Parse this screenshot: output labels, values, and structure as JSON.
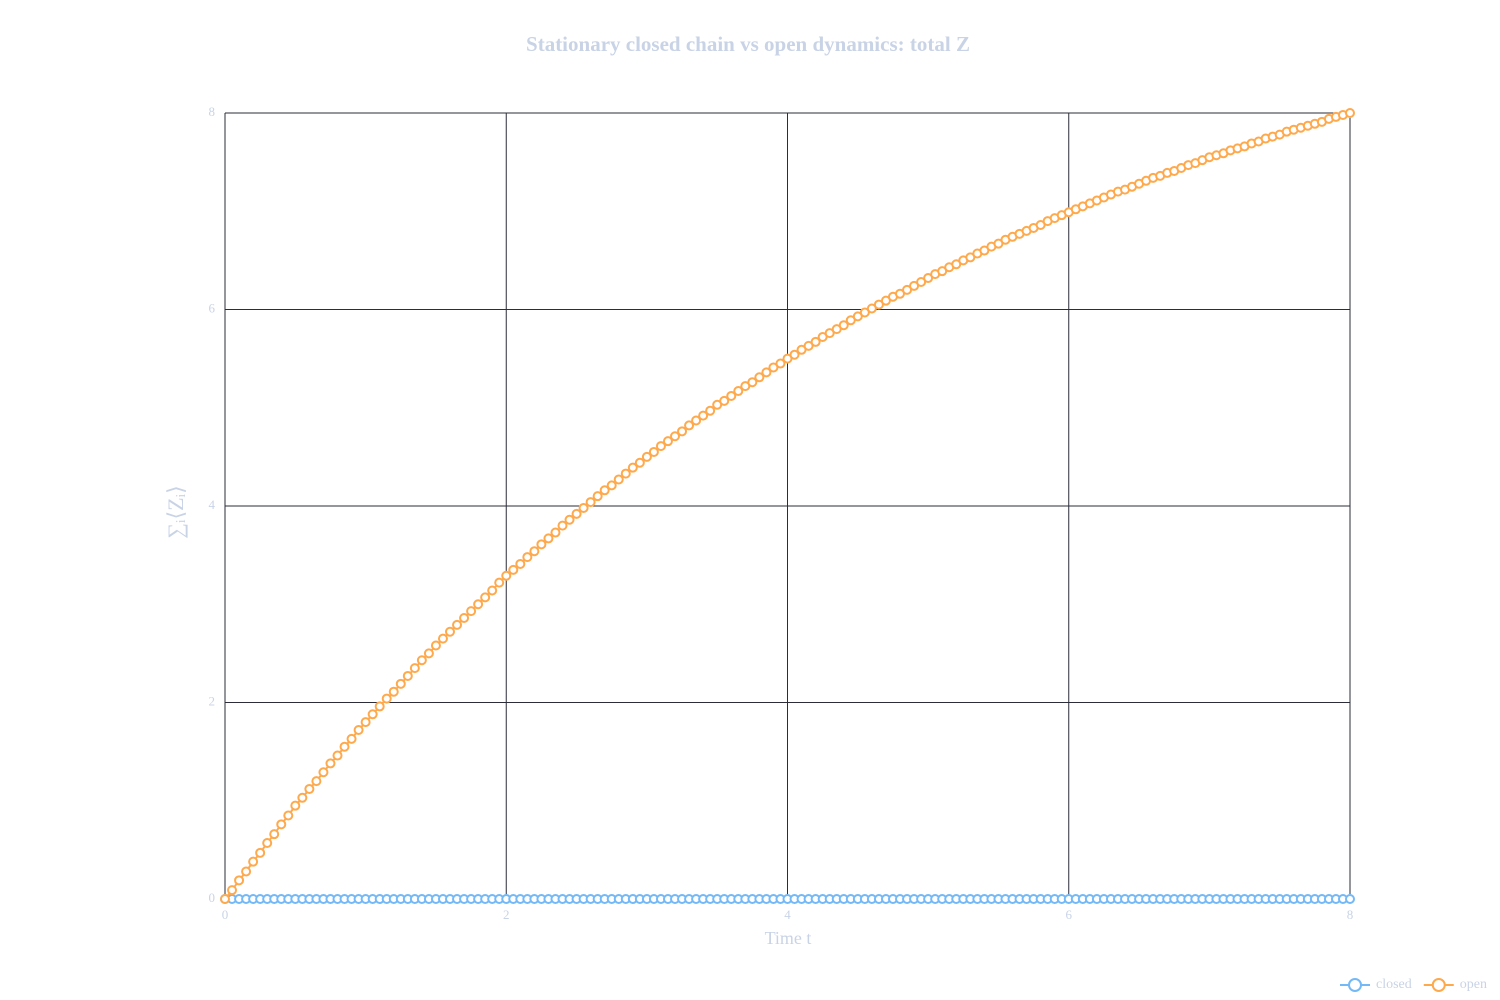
{
  "chart_data": {
    "type": "line",
    "title": "Stationary closed chain vs open dynamics: total Z",
    "x_label": "Time t",
    "y_label": "∑ᵢ⟨Zᵢ⟩",
    "xlim": [
      0,
      8
    ],
    "ylim": [
      0,
      8
    ],
    "xticks": [
      0,
      2,
      4,
      6,
      8
    ],
    "yticks": [
      0,
      2,
      4,
      6,
      8
    ],
    "grid": true,
    "legend": "bottom-right",
    "markers": true,
    "x": [
      0,
      0.05,
      0.1,
      0.15,
      0.2,
      0.25,
      0.3,
      0.35,
      0.4,
      0.45,
      0.5,
      0.55,
      0.6,
      0.65,
      0.7,
      0.75,
      0.8,
      0.85,
      0.9,
      0.95,
      1,
      1.05,
      1.1,
      1.15,
      1.2,
      1.25,
      1.3,
      1.35,
      1.4,
      1.45,
      1.5,
      1.55,
      1.6,
      1.65,
      1.7,
      1.75,
      1.8,
      1.85,
      1.9,
      1.95,
      2,
      2.05,
      2.1,
      2.15,
      2.2,
      2.25,
      2.3,
      2.35,
      2.4,
      2.45,
      2.5,
      2.55,
      2.6,
      2.65,
      2.7,
      2.75,
      2.8,
      2.85,
      2.9,
      2.95,
      3,
      3.05,
      3.1,
      3.15,
      3.2,
      3.25,
      3.3,
      3.35,
      3.4,
      3.45,
      3.5,
      3.55,
      3.6,
      3.65,
      3.7,
      3.75,
      3.8,
      3.85,
      3.9,
      3.95,
      4,
      4.05,
      4.1,
      4.15,
      4.2,
      4.25,
      4.3,
      4.35,
      4.4,
      4.45,
      4.5,
      4.55,
      4.6,
      4.65,
      4.7,
      4.75,
      4.8,
      4.85,
      4.9,
      4.95,
      5,
      5.05,
      5.1,
      5.15,
      5.2,
      5.25,
      5.3,
      5.35,
      5.4,
      5.45,
      5.5,
      5.55,
      5.6,
      5.65,
      5.7,
      5.75,
      5.8,
      5.85,
      5.9,
      5.95,
      6,
      6.05,
      6.1,
      6.15,
      6.2,
      6.25,
      6.3,
      6.35,
      6.4,
      6.45,
      6.5,
      6.55,
      6.6,
      6.65,
      6.7,
      6.75,
      6.8,
      6.85,
      6.9,
      6.95,
      7,
      7.05,
      7.1,
      7.15,
      7.2,
      7.25,
      7.3,
      7.35,
      7.4,
      7.45,
      7.5,
      7.55,
      7.6,
      7.65,
      7.7,
      7.75,
      7.8,
      7.85,
      7.9,
      7.95,
      8
    ],
    "series": [
      {
        "name": "closed",
        "color": "#74b9f7",
        "values": [
          0,
          0,
          0,
          0,
          0,
          0,
          0,
          0,
          0,
          0,
          0,
          0,
          0,
          0,
          0,
          0,
          0,
          0,
          0,
          0,
          0,
          0,
          0,
          0,
          0,
          0,
          0,
          0,
          0,
          0,
          0,
          0,
          0,
          0,
          0,
          0,
          0,
          0,
          0,
          0,
          0,
          0,
          0,
          0,
          0,
          0,
          0,
          0,
          0,
          0,
          0,
          0,
          0,
          0,
          0,
          0,
          0,
          0,
          0,
          0,
          0,
          0,
          0,
          0,
          0,
          0,
          0,
          0,
          0,
          0,
          0,
          0,
          0,
          0,
          0,
          0,
          0,
          0,
          0,
          0,
          0,
          0,
          0,
          0,
          0,
          0,
          0,
          0,
          0,
          0,
          0,
          0,
          0,
          0,
          0,
          0,
          0,
          0,
          0,
          0,
          0,
          0,
          0,
          0,
          0,
          0,
          0,
          0,
          0,
          0,
          0,
          0,
          0,
          0,
          0,
          0,
          0,
          0,
          0,
          0,
          0,
          0,
          0,
          0,
          0,
          0,
          0,
          0,
          0,
          0,
          0,
          0,
          0,
          0,
          0,
          0,
          0,
          0,
          0,
          0,
          0,
          0,
          0,
          0,
          0,
          0,
          0,
          0,
          0,
          0,
          0,
          0,
          0,
          0,
          0,
          0,
          0,
          0,
          0,
          0,
          0
        ]
      },
      {
        "name": "open",
        "color": "#ffa94d",
        "values": [
          0,
          0.09,
          0.19,
          0.28,
          0.38,
          0.47,
          0.57,
          0.66,
          0.76,
          0.85,
          0.95,
          1.03,
          1.12,
          1.2,
          1.29,
          1.38,
          1.46,
          1.55,
          1.63,
          1.72,
          1.8,
          1.88,
          1.96,
          2.04,
          2.11,
          2.19,
          2.27,
          2.35,
          2.43,
          2.5,
          2.58,
          2.65,
          2.72,
          2.79,
          2.86,
          2.93,
          3,
          3.07,
          3.14,
          3.22,
          3.29,
          3.35,
          3.41,
          3.48,
          3.54,
          3.61,
          3.67,
          3.73,
          3.8,
          3.86,
          3.92,
          3.98,
          4.04,
          4.1,
          4.16,
          4.21,
          4.27,
          4.33,
          4.39,
          4.44,
          4.5,
          4.55,
          4.61,
          4.66,
          4.71,
          4.76,
          4.82,
          4.87,
          4.92,
          4.97,
          5.03,
          5.07,
          5.12,
          5.17,
          5.22,
          5.26,
          5.31,
          5.36,
          5.41,
          5.45,
          5.5,
          5.54,
          5.59,
          5.63,
          5.67,
          5.72,
          5.76,
          5.8,
          5.84,
          5.89,
          5.93,
          5.97,
          6.01,
          6.05,
          6.09,
          6.13,
          6.16,
          6.2,
          6.24,
          6.28,
          6.32,
          6.36,
          6.39,
          6.43,
          6.46,
          6.5,
          6.53,
          6.57,
          6.6,
          6.64,
          6.67,
          6.71,
          6.74,
          6.77,
          6.8,
          6.83,
          6.86,
          6.9,
          6.93,
          6.96,
          6.99,
          7.02,
          7.05,
          7.08,
          7.11,
          7.14,
          7.17,
          7.2,
          7.22,
          7.25,
          7.28,
          7.31,
          7.34,
          7.36,
          7.39,
          7.41,
          7.44,
          7.47,
          7.49,
          7.52,
          7.55,
          7.57,
          7.59,
          7.62,
          7.64,
          7.66,
          7.69,
          7.71,
          7.74,
          7.76,
          7.78,
          7.81,
          7.83,
          7.85,
          7.87,
          7.89,
          7.91,
          7.94,
          7.96,
          7.98,
          8
        ]
      }
    ]
  }
}
